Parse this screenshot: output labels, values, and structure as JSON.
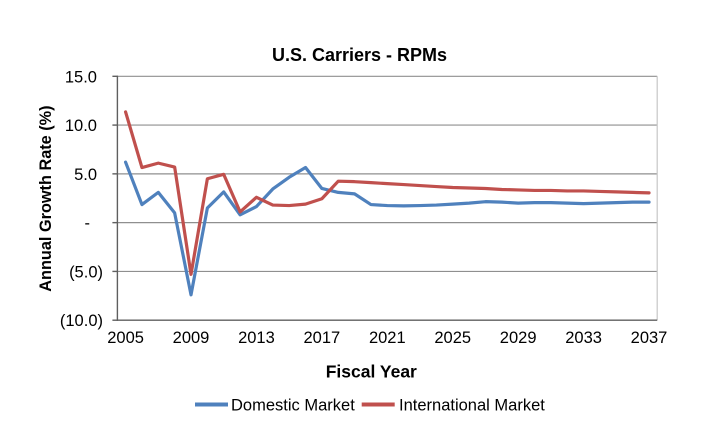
{
  "chart_data": {
    "type": "line",
    "title": "U.S. Carriers - RPMs",
    "xlabel": "Fiscal Year",
    "ylabel": "Annual Growth Rate (%)",
    "x": [
      2005,
      2006,
      2007,
      2008,
      2009,
      2010,
      2011,
      2012,
      2013,
      2014,
      2015,
      2016,
      2017,
      2018,
      2019,
      2020,
      2021,
      2022,
      2023,
      2024,
      2025,
      2026,
      2027,
      2028,
      2029,
      2030,
      2031,
      2032,
      2033,
      2034,
      2035,
      2036,
      2037
    ],
    "series": [
      {
        "name": "Domestic Market",
        "color": "#4F81BD",
        "values": [
          6.2,
          1.85,
          3.1,
          1.0,
          -7.4,
          1.5,
          3.15,
          0.8,
          1.65,
          3.45,
          4.65,
          5.65,
          3.5,
          3.1,
          2.95,
          1.85,
          1.75,
          1.72,
          1.75,
          1.8,
          1.9,
          2.0,
          2.15,
          2.1,
          2.0,
          2.05,
          2.05,
          2.0,
          1.95,
          2.0,
          2.05,
          2.1,
          2.1
        ]
      },
      {
        "name": "International Market",
        "color": "#C0504D",
        "values": [
          11.35,
          5.65,
          6.1,
          5.7,
          -5.3,
          4.5,
          4.95,
          1.1,
          2.6,
          1.8,
          1.75,
          1.9,
          2.45,
          4.25,
          4.2,
          4.1,
          4.0,
          3.9,
          3.8,
          3.7,
          3.6,
          3.55,
          3.5,
          3.4,
          3.35,
          3.3,
          3.3,
          3.25,
          3.25,
          3.2,
          3.15,
          3.1,
          3.05
        ]
      }
    ],
    "ylim": [
      -10,
      15
    ],
    "ytick_values": [
      15,
      10,
      5,
      0,
      -5,
      -10
    ],
    "ytick_labels": [
      "15.0",
      "10.0",
      "5.0",
      "-",
      "(5.0)",
      "(10.0)"
    ],
    "xtick_values": [
      2005,
      2009,
      2013,
      2017,
      2021,
      2025,
      2029,
      2033,
      2037
    ],
    "xtick_labels": [
      "2005",
      "2009",
      "2013",
      "2017",
      "2021",
      "2025",
      "2029",
      "2033",
      "2037"
    ],
    "grid": true,
    "legend_position": "bottom"
  },
  "colors": {
    "background": "#ffffff",
    "gridline": "#8f8f8f",
    "axis_line": "#5f5f5f",
    "plot_border_right": "#c6c6c6",
    "text": "#000000",
    "domestic_series": "#4F81BD",
    "international_series": "#C0504D"
  }
}
